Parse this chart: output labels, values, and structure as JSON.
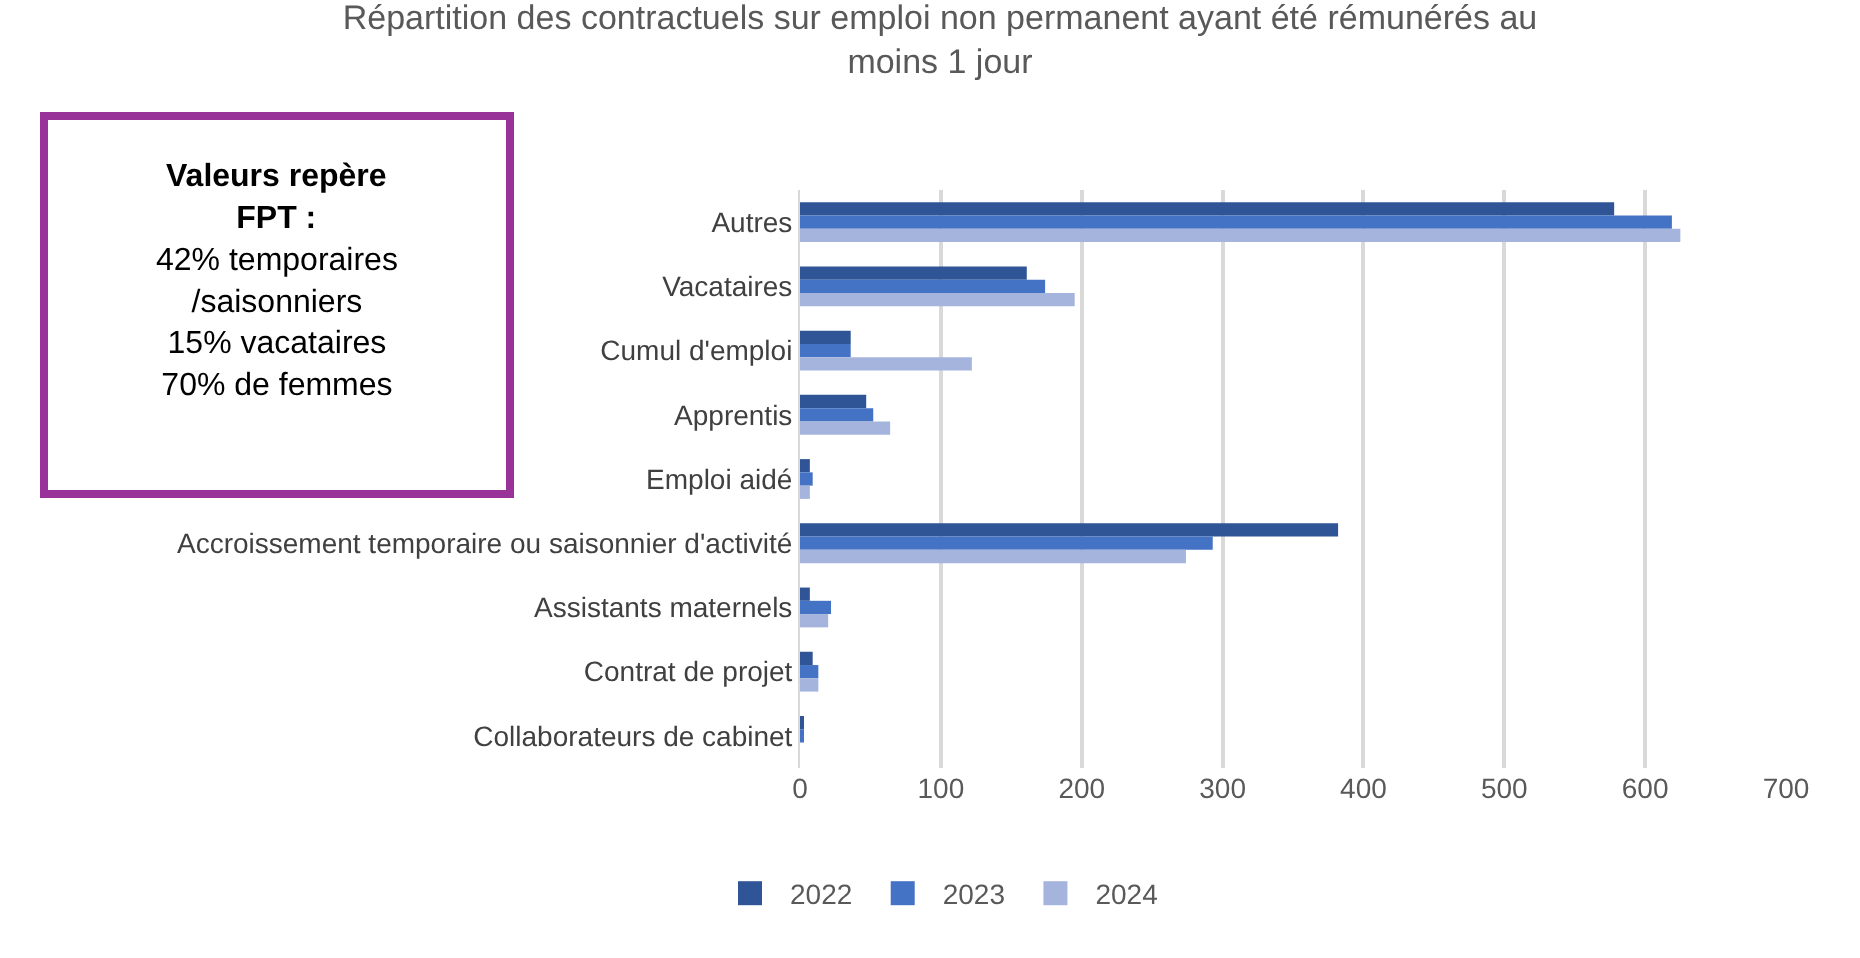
{
  "chart_data": {
    "type": "bar",
    "orientation": "horizontal",
    "title": "Répartition des contractuels sur emploi non permanent ayant été rémunérés au\nmoins 1 jour",
    "categories": [
      "Autres",
      "Vacataires",
      "Cumul d'emploi",
      "Apprentis",
      "Emploi aidé",
      "Accroissement temporaire ou saisonnier d'activité",
      "Assistants maternels",
      "Contrat de projet",
      "Collaborateurs de cabinet"
    ],
    "series": [
      {
        "name": "2022",
        "color": "#2f5597",
        "values": [
          578,
          161,
          36,
          47,
          7,
          382,
          7,
          9,
          2
        ]
      },
      {
        "name": "2023",
        "color": "#4472c4",
        "values": [
          619,
          174,
          36,
          52,
          9,
          293,
          22,
          13,
          2
        ]
      },
      {
        "name": "2024",
        "color": "#a5b4dc",
        "values": [
          625,
          195,
          122,
          64,
          7,
          274,
          20,
          13,
          null
        ]
      }
    ],
    "xlim": [
      0,
      700
    ],
    "xticks": [
      0,
      100,
      200,
      300,
      400,
      500,
      600,
      700
    ],
    "grid": "x",
    "legend": "bottom",
    "annotations": [
      "Valeurs repère\nFPT :",
      "42% temporaires\n/saisonniers\n15% vacataires\n70% de femmes"
    ]
  }
}
